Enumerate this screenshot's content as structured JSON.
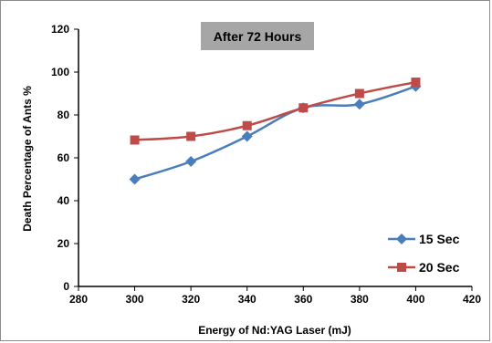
{
  "chart_data": {
    "type": "line",
    "title": "After 72 Hours",
    "xlabel": "Energy of Nd:YAG Laser (mJ)",
    "ylabel": "Death Percentage of Ants %",
    "xlim": [
      280,
      420
    ],
    "ylim": [
      0,
      120
    ],
    "x_ticks": [
      "280",
      "300",
      "320",
      "340",
      "360",
      "380",
      "400",
      "420"
    ],
    "y_ticks": [
      "0",
      "20",
      "40",
      "60",
      "80",
      "100",
      "120"
    ],
    "x": [
      300,
      320,
      340,
      360,
      380,
      400
    ],
    "series": [
      {
        "name": "15 Sec",
        "values": [
          50,
          58.3,
          70,
          83.3,
          85,
          93.3
        ],
        "color": "#4a7ebb",
        "marker": "diamond"
      },
      {
        "name": "20 Sec",
        "values": [
          68.3,
          70,
          75,
          83.3,
          90,
          95.3
        ],
        "color": "#be4b48",
        "marker": "square"
      }
    ],
    "grid": false,
    "legend_position": "bottom-right",
    "title_box_color": "#a6a6a6"
  }
}
